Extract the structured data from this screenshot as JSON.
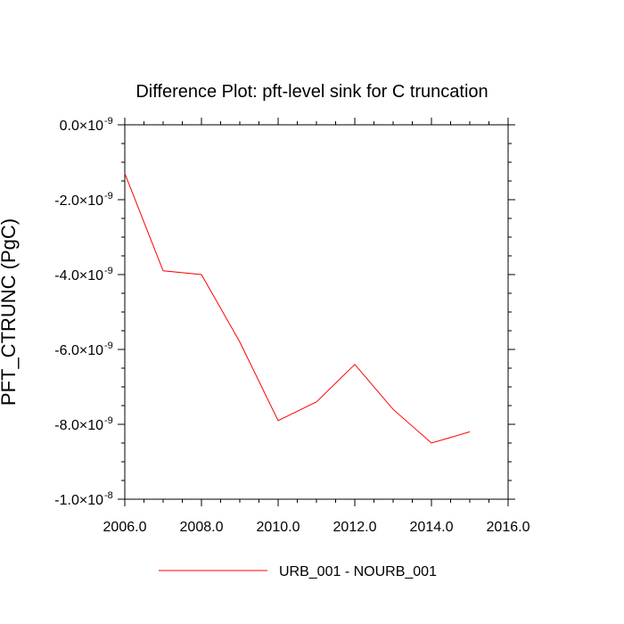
{
  "chart_data": {
    "type": "line",
    "title": "Difference Plot: pft-level sink for C truncation",
    "xlabel": "",
    "ylabel": "PFT_CTRUNC  (PgC)",
    "xlim": [
      2006,
      2016
    ],
    "ylim": [
      -1e-08,
      0
    ],
    "grid": false,
    "legend_position": "bottom",
    "x_ticks": [
      {
        "value": 2006,
        "label": "2006.0"
      },
      {
        "value": 2008,
        "label": "2008.0"
      },
      {
        "value": 2010,
        "label": "2010.0"
      },
      {
        "value": 2012,
        "label": "2012.0"
      },
      {
        "value": 2014,
        "label": "2014.0"
      },
      {
        "value": 2016,
        "label": "2016.0"
      }
    ],
    "y_ticks": [
      {
        "value": 0,
        "mantissa": "0.0",
        "exponent": "-9"
      },
      {
        "value": -2e-09,
        "mantissa": "-2.0",
        "exponent": "-9"
      },
      {
        "value": -4e-09,
        "mantissa": "-4.0",
        "exponent": "-9"
      },
      {
        "value": -6e-09,
        "mantissa": "-6.0",
        "exponent": "-9"
      },
      {
        "value": -8e-09,
        "mantissa": "-8.0",
        "exponent": "-9"
      },
      {
        "value": -1e-08,
        "mantissa": "-1.0",
        "exponent": "-8"
      }
    ],
    "times_symbol": "×10",
    "series": [
      {
        "name": "URB_001 - NOURB_001",
        "color": "#ff0000",
        "x": [
          2006,
          2007,
          2008,
          2009,
          2010,
          2011,
          2012,
          2013,
          2014,
          2015
        ],
        "y": [
          -1.3e-09,
          -3.9e-09,
          -4e-09,
          -5.8e-09,
          -7.9e-09,
          -7.4e-09,
          -6.4e-09,
          -7.6e-09,
          -8.5e-09,
          -8.2e-09
        ]
      }
    ]
  }
}
